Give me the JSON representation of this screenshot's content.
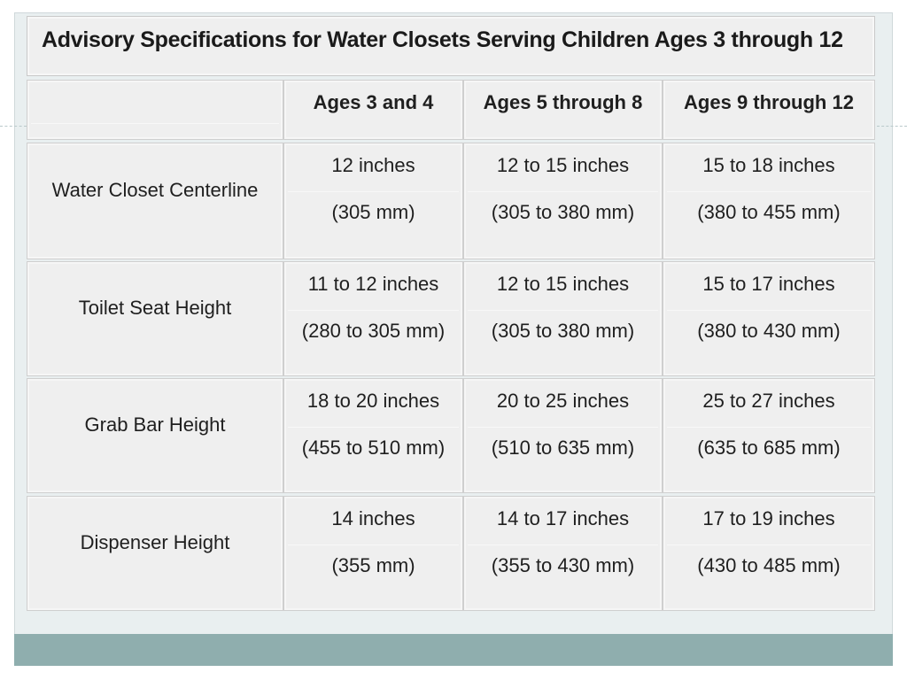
{
  "title": "Advisory Specifications for Water Closets Serving Children Ages 3 through 12",
  "columns": [
    "Ages 3 and 4",
    "Ages 5 through 8",
    "Ages 9 through 12"
  ],
  "rows": [
    {
      "label": "Water Closet Centerline",
      "values": [
        {
          "inches": "12 inches",
          "mm": "(305 mm)"
        },
        {
          "inches": "12 to 15 inches",
          "mm": "(305 to 380 mm)"
        },
        {
          "inches": "15 to 18 inches",
          "mm": "(380 to 455 mm)"
        }
      ]
    },
    {
      "label": "Toilet Seat Height",
      "values": [
        {
          "inches": "11 to 12 inches",
          "mm": "(280 to 305 mm)"
        },
        {
          "inches": "12 to 15 inches",
          "mm": "(305 to 380 mm)"
        },
        {
          "inches": "15 to 17 inches",
          "mm": "(380 to 430 mm)"
        }
      ]
    },
    {
      "label": "Grab Bar Height",
      "values": [
        {
          "inches": "18 to 20 inches",
          "mm": "(455 to 510 mm)"
        },
        {
          "inches": "20 to 25 inches",
          "mm": "(510 to 635 mm)"
        },
        {
          "inches": "25 to 27 inches",
          "mm": "(635 to 685 mm)"
        }
      ]
    },
    {
      "label": "Dispenser Height",
      "values": [
        {
          "inches": "14 inches",
          "mm": "(355 mm)"
        },
        {
          "inches": "14 to 17 inches",
          "mm": "(355 to 430 mm)"
        },
        {
          "inches": "17 to 19 inches",
          "mm": "(430 to 485 mm)"
        }
      ]
    }
  ],
  "colors": {
    "background": "#e9eff0",
    "cell": "#efefef",
    "footer_band": "#8faeae",
    "text": "#1f1f1f"
  }
}
